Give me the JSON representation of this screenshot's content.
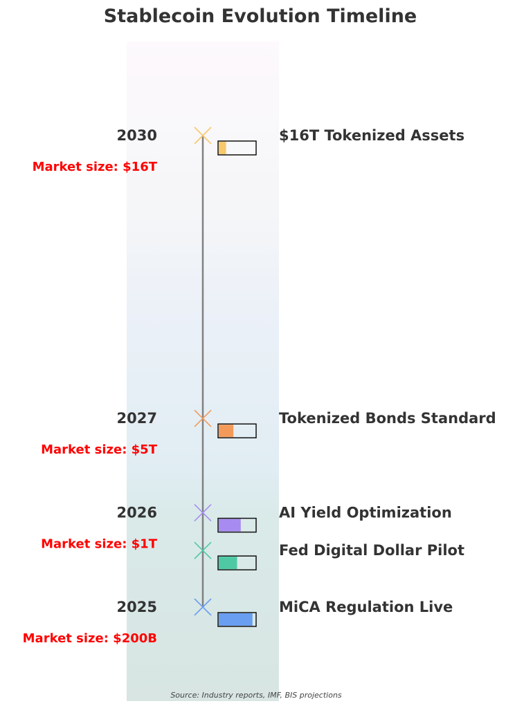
{
  "chart_data": {
    "type": "timeline",
    "title": "Stablecoin Evolution Timeline",
    "source": "Source: Industry reports, IMF, BIS projections",
    "events": [
      {
        "position": 2025.0,
        "year": "2025",
        "label": "MiCA Regulation Live",
        "market": "Market size: $200B",
        "progress": 0.92,
        "color": "#6a9ef0"
      },
      {
        "position": 2025.6,
        "year": "",
        "label": "Fed Digital Dollar Pilot",
        "market": "",
        "progress": 0.5,
        "color": "#4ec9a3"
      },
      {
        "position": 2026.0,
        "year": "2026",
        "label": "AI Yield Optimization",
        "market": "Market size: $1T",
        "progress": 0.6,
        "color": "#a78bf0"
      },
      {
        "position": 2027.0,
        "year": "2027",
        "label": "Tokenized Bonds Standard",
        "market": "Market size: $5T",
        "progress": 0.4,
        "color": "#f39a5b"
      },
      {
        "position": 2030.0,
        "year": "2030",
        "label": "$16T Tokenized Assets",
        "market": "Market size: $16T",
        "progress": 0.2,
        "color": "#f7c96b"
      }
    ]
  }
}
